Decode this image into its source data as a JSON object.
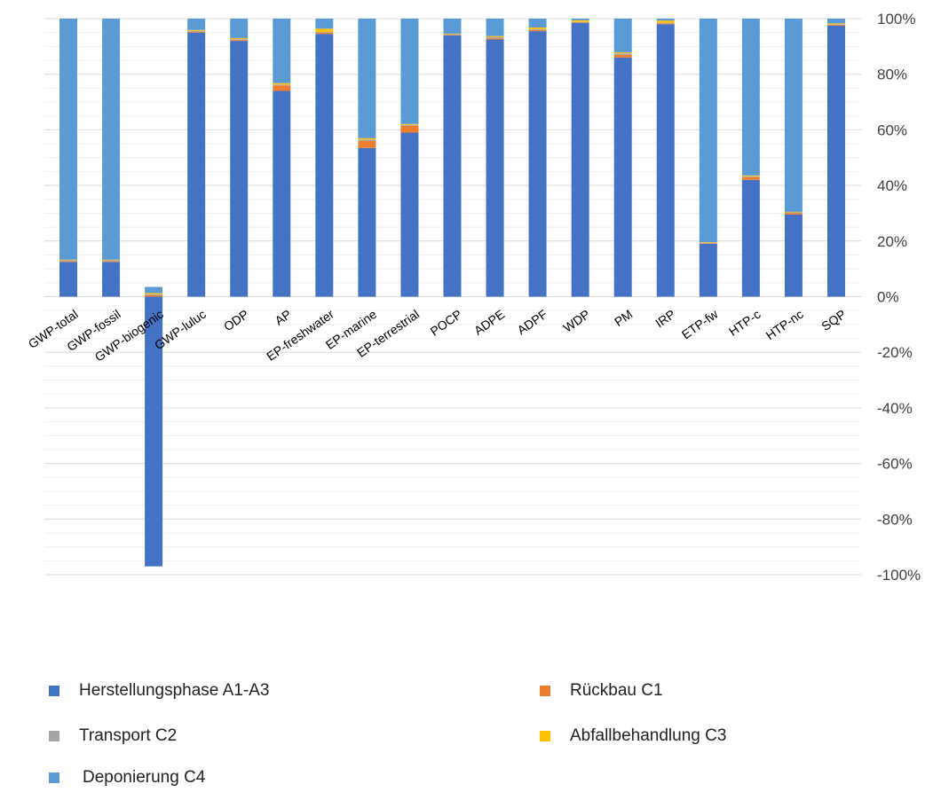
{
  "chart_data": {
    "type": "bar",
    "stacked": true,
    "categories": [
      "GWP-total",
      "GWP-fossil",
      "GWP-biogenic",
      "GWP-luluc",
      "ODP",
      "AP",
      "EP-freshwater",
      "EP-marine",
      "EP-terrestrial",
      "POCP",
      "ADPE",
      "ADPF",
      "WDP",
      "PM",
      "IRP",
      "ETP-fw",
      "HTP-c",
      "HTP-nc",
      "SQP"
    ],
    "series": [
      {
        "name": "Herstellungsphase A1-A3",
        "color": "#4472C4",
        "values": [
          12.5,
          12.5,
          -97,
          95,
          92,
          74,
          94.5,
          53.5,
          59,
          94,
          92.5,
          95.5,
          98.5,
          86,
          98,
          19,
          42,
          29.5,
          97.5
        ]
      },
      {
        "name": "Rückbau C1",
        "color": "#ED7D31",
        "values": [
          0.3,
          0.3,
          0.5,
          0.3,
          0.3,
          2,
          0.5,
          2.5,
          2.5,
          0.2,
          0.4,
          0.4,
          0.2,
          1,
          0.3,
          0.2,
          1,
          0.5,
          0.3
        ]
      },
      {
        "name": "Transport C2",
        "color": "#A5A5A5",
        "values": [
          0.3,
          0.3,
          0.4,
          0.3,
          0.3,
          0.3,
          0.2,
          0.5,
          0.3,
          0.2,
          0.4,
          0.3,
          0.1,
          0.5,
          0.2,
          0.2,
          0.3,
          0.3,
          0.2
        ]
      },
      {
        "name": "Abfallbehandlung C3",
        "color": "#FFC000",
        "values": [
          0.2,
          0.2,
          0.4,
          0.3,
          0.4,
          0.5,
          1.2,
          0.5,
          0.3,
          0.2,
          0.4,
          0.6,
          0.6,
          0.4,
          0.8,
          0.2,
          0.3,
          0.2,
          0.3
        ]
      },
      {
        "name": "Deponierung C4",
        "color": "#5B9BD5",
        "values": [
          86.7,
          86.7,
          2.2,
          4.1,
          7,
          23.2,
          3.6,
          43,
          37.9,
          5.4,
          6.3,
          3.2,
          0.6,
          12.1,
          0.7,
          80.4,
          56.4,
          69.5,
          1.7
        ]
      }
    ],
    "y_ticks": [
      "100%",
      "80%",
      "60%",
      "40%",
      "20%",
      "0%",
      "-20%",
      "-40%",
      "-60%",
      "-80%",
      "-100%"
    ],
    "ylim": [
      -100,
      100
    ],
    "grid": true,
    "legend_position": "bottom"
  }
}
